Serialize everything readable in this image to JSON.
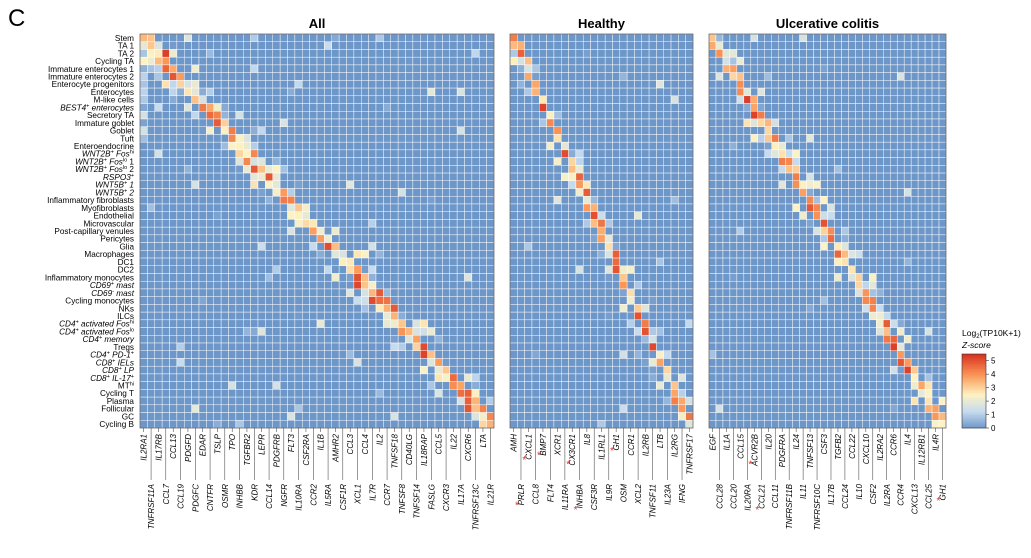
{
  "panel_letter": "C",
  "chart_data": {
    "type": "heatmap",
    "rows": [
      "Stem",
      "TA 1",
      "TA 2",
      "Cycling TA",
      "Immature enterocytes 1",
      "Immature enterocytes 2",
      "Enterocyte progenitors",
      "Enterocytes",
      "M-like cells",
      "BEST4+ enterocytes",
      "Secretory TA",
      "Immature goblet",
      "Goblet",
      "Tuft",
      "Enteroendocrine",
      "WNT2B+ Fos-hi",
      "WNT2B+ Fos-lo 1",
      "WNT2B+ Fos-lo 2",
      "RSPO3+",
      "WNT5B+ 1",
      "WNT5B+ 2",
      "Inflammatory fibroblasts",
      "Myofibroblasts",
      "Endothelial",
      "Microvascular",
      "Post-capillary venules",
      "Pericytes",
      "Glia",
      "Macrophages",
      "DC1",
      "DC2",
      "Inflammatory monocytes",
      "CD69+ mast",
      "CD69- mast",
      "Cycling monocytes",
      "NKs",
      "ILCs",
      "CD4+ activated Fos-hi",
      "CD4+ activated Fos-lo",
      "CD4+ memory",
      "Tregs",
      "CD4+ PD1+",
      "CD8+ IELs",
      "CD8+ LP",
      "CD8+ IL-17+",
      "MT-hi",
      "Cycling T",
      "Plasma",
      "Follicular",
      "GC",
      "Cycling B"
    ],
    "row_label_display": [
      {
        "base": "Stem"
      },
      {
        "base": "TA 1"
      },
      {
        "base": "TA 2"
      },
      {
        "base": "Cycling TA"
      },
      {
        "base": "Immature enterocytes 1"
      },
      {
        "base": "Immature enterocytes 2"
      },
      {
        "base": "Enterocyte progenitors"
      },
      {
        "base": "Enterocytes"
      },
      {
        "base": "M-like cells"
      },
      {
        "base": "BEST4",
        "sup": "+",
        "rest": " enterocytes",
        "italic": true
      },
      {
        "base": "Secretory TA"
      },
      {
        "base": "Immature goblet"
      },
      {
        "base": "Goblet"
      },
      {
        "base": "Tuft"
      },
      {
        "base": "Enteroendocrine"
      },
      {
        "base": "WNT2B",
        "sup": "+",
        "rest": " Fos",
        "sup2": "hi",
        "italic": true
      },
      {
        "base": "WNT2B",
        "sup": "+",
        "rest": " Fos",
        "sup2": "lo",
        "rest2": " 1",
        "italic": true
      },
      {
        "base": "WNT2B",
        "sup": "+",
        "rest": " Fos",
        "sup2": "lo",
        "rest2": " 2",
        "italic": true
      },
      {
        "base": "RSPO3",
        "sup": "+",
        "italic": true
      },
      {
        "base": "WNT5B",
        "sup": "+",
        "rest": " 1",
        "italic": true
      },
      {
        "base": "WNT5B",
        "sup": "+",
        "rest": " 2",
        "italic": true
      },
      {
        "base": "Inflammatory fibroblasts"
      },
      {
        "base": "Myofibroblasts"
      },
      {
        "base": "Endothelial"
      },
      {
        "base": "Microvascular"
      },
      {
        "base": "Post-capillary venules"
      },
      {
        "base": "Pericytes"
      },
      {
        "base": "Glia"
      },
      {
        "base": "Macrophages"
      },
      {
        "base": "DC1"
      },
      {
        "base": "DC2"
      },
      {
        "base": "Inflammatory monocytes"
      },
      {
        "base": "CD69",
        "sup": "+",
        "rest": " mast",
        "italic": true
      },
      {
        "base": "CD69",
        "sup": "-",
        "rest": " mast",
        "italic": true
      },
      {
        "base": "Cycling monocytes"
      },
      {
        "base": "NKs"
      },
      {
        "base": "ILCs"
      },
      {
        "base": "CD4",
        "sup": "+",
        "rest": " activated Fos",
        "sup2": "hi",
        "italic": true
      },
      {
        "base": "CD4",
        "sup": "+",
        "rest": " activated Fos",
        "sup2": "lo",
        "italic": true
      },
      {
        "base": "CD4",
        "sup": "+",
        "rest": " memory",
        "italic": true
      },
      {
        "base": "Tregs"
      },
      {
        "base": "CD4",
        "sup": "+",
        "rest": " PD-1",
        "sup2": "+",
        "italic": true
      },
      {
        "base": "CD8",
        "sup": "+",
        "rest": " IELs",
        "italic": true
      },
      {
        "base": "CD8",
        "sup": "+",
        "rest": " LP",
        "italic": true
      },
      {
        "base": "CD8",
        "sup": "+",
        "rest": " IL-17",
        "sup2": "+",
        "italic": true
      },
      {
        "base": "MT",
        "sup": "hi"
      },
      {
        "base": "Cycling T"
      },
      {
        "base": "Plasma"
      },
      {
        "base": "Follicular"
      },
      {
        "base": "GC"
      },
      {
        "base": "Cycling B"
      }
    ],
    "panels": [
      {
        "title": "All",
        "columns": [
          "IL2RA1",
          "TNFRSF11A",
          "IL17RB",
          "CCL7",
          "CCL13",
          "CCL19",
          "PDGFD",
          "PDGFC",
          "EDAR",
          "CNTFR",
          "TSLP",
          "OSMR",
          "TPO",
          "INHBB",
          "TGFBR2",
          "KDR",
          "LEPR",
          "CCL14",
          "PDGFRB",
          "NGFR",
          "FLT3",
          "IL10RA",
          "CSF2RA",
          "CCR2",
          "IL1B",
          "IL5RA",
          "AMHR2",
          "CSF1R",
          "CCL3",
          "XCL1",
          "CCL4",
          "IL7R",
          "IL2",
          "CCR7",
          "TNFSF18",
          "TNFSF8",
          "CD40LG",
          "TNFSF14",
          "IL18RAP",
          "FASLG",
          "CCL5",
          "CXCR3",
          "IL22",
          "IL17A",
          "CXCR6",
          "TNFRSF13C",
          "LTA",
          "IL21R"
        ]
      },
      {
        "title": "Healthy",
        "columns": [
          "AMH",
          "PRLR",
          "CXCL1",
          "CCL8",
          "BMP7",
          "FLT4",
          "XCR1",
          "IL11RA",
          "CX3CR1",
          "INHBA",
          "IL8",
          "CSF3R",
          "IL1RL1",
          "IL9R",
          "GH1",
          "OSM",
          "CCR1",
          "XCL2",
          "IL2RB",
          "TNFSF11",
          "LTB",
          "IL23A",
          "IL2RG",
          "IFNG",
          "TNFRSF17"
        ]
      },
      {
        "title": "Ulcerative colitis",
        "columns": [
          "EGF",
          "CCL28",
          "IL1A",
          "CCL20",
          "CCL15",
          "IL20RA",
          "ACVR2B",
          "CCL21",
          "IL20",
          "CCL11",
          "PDGFRA",
          "TNFRSF11B",
          "IL24",
          "IL11",
          "TNFSF13",
          "TNFRSF10C",
          "CSF3",
          "IL17B",
          "TGFB2",
          "CCL24",
          "CCL22",
          "IL10",
          "CXCL10",
          "CSF2",
          "IL2RA2",
          "IL2RA",
          "CCR6",
          "CCR4",
          "IL4",
          "CXCL13",
          "IL12RB1",
          "CCL25",
          "IL4R",
          "GH1"
        ]
      }
    ],
    "starred_columns": [
      "PRLR",
      "CXCL1",
      "BMP7",
      "CX3CR1",
      "INHBA",
      "GH1",
      "ACVR2B",
      "CCL21",
      "GH1"
    ],
    "colorbar": {
      "title": "Log2(TP10K+1)",
      "title_base": "Log",
      "title_sub": "2",
      "title_rest": "(TP10K+1)",
      "subtitle": "Z-score",
      "range": [
        0,
        5.5
      ],
      "ticks": [
        "0",
        "1",
        "2",
        "3",
        "4",
        "5"
      ]
    },
    "colors": {
      "low": "#6e97c9",
      "mid": "#fdf2c2",
      "high": "#d7301f",
      "cell_border": "#ffffff",
      "text": "#000000",
      "star": "#d7301f"
    },
    "cell_value_description": "Mostly 0 (blue background); elevated z-scores concentrated along the diagonal of cell type vs. gene, with heaviest hot spots (~5) at M-like cells, Tuft, WNT5B+, Endothelial, IL-17+ CD8 cells and GC B cells."
  }
}
